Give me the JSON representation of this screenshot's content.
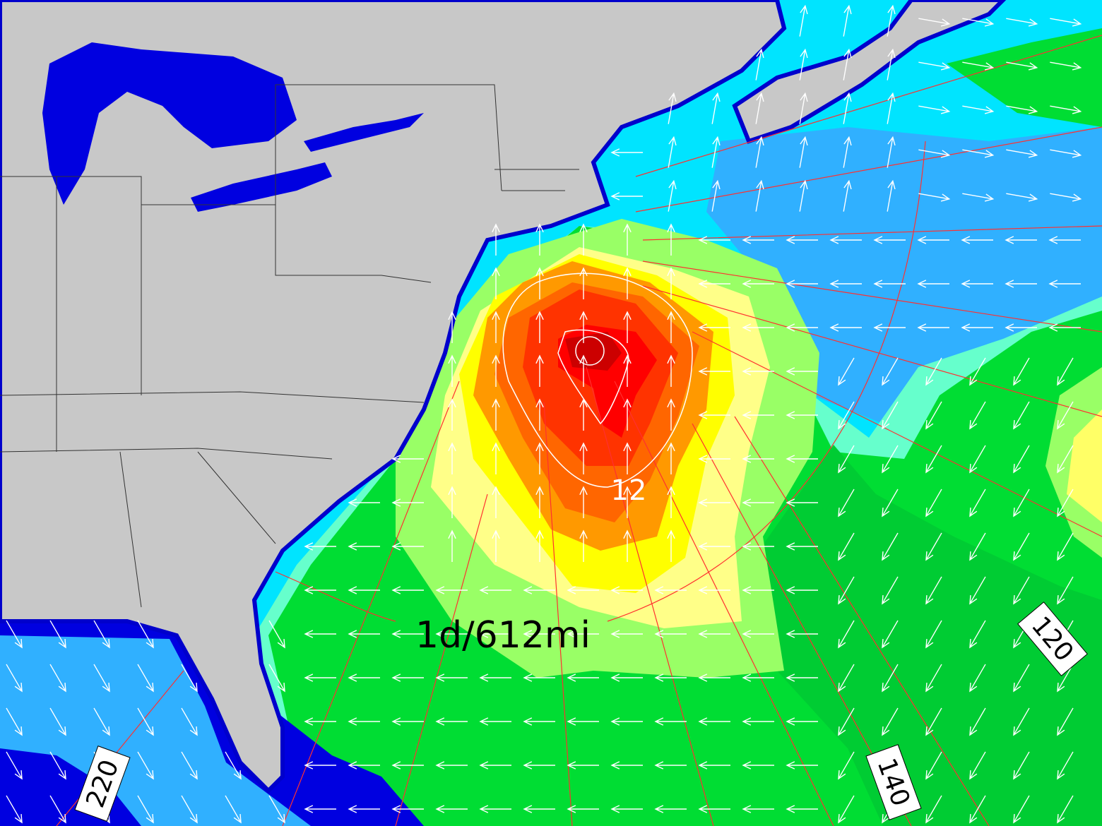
{
  "map": {
    "contour_label": "12",
    "distance_label": "1d/612mi",
    "bearing_labels": [
      "120",
      "140",
      "220"
    ]
  }
}
